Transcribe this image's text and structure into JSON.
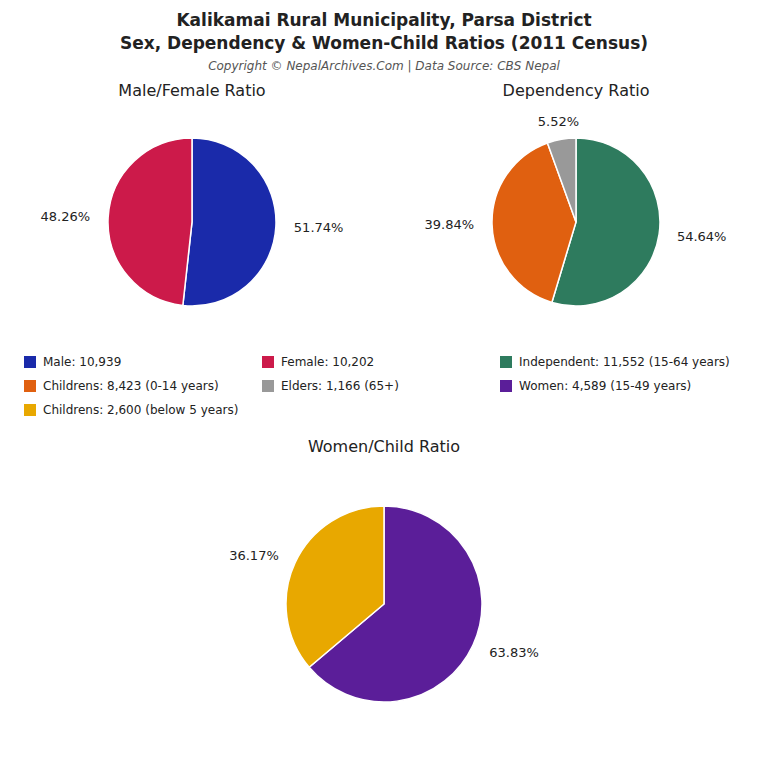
{
  "title": "Kalikamai Rural Municipality, Parsa District",
  "subtitle": "Sex, Dependency & Women-Child Ratios (2011 Census)",
  "annotations": [
    "Copyright © NepalArchives.Com | Data Source: CBS Nepal"
  ],
  "chart_data": [
    {
      "type": "pie",
      "title": "Male/Female Ratio",
      "categories": [
        "Male: 10,939",
        "Female: 10,202"
      ],
      "values": [
        51.74,
        48.26
      ],
      "value_labels": [
        "51.74%",
        "48.26%"
      ],
      "colors": [
        "#1a2aaa",
        "#cc1a4a"
      ],
      "data_labels": true,
      "legend": "bottom"
    },
    {
      "type": "pie",
      "title": "Dependency Ratio",
      "categories": [
        "Independent: 11,552 (15-64 years)",
        "Childrens: 8,423 (0-14 years)",
        "Elders: 1,166 (65+)"
      ],
      "values": [
        54.64,
        39.84,
        5.52
      ],
      "value_labels": [
        "54.64%",
        "39.84%",
        "5.52%"
      ],
      "colors": [
        "#2e7b5e",
        "#e06010",
        "#999999"
      ],
      "data_labels": true,
      "legend": "bottom"
    },
    {
      "type": "pie",
      "title": "Women/Child Ratio",
      "categories": [
        "Women: 4,589 (15-49 years)",
        "Childrens: 2,600 (below 5 years)"
      ],
      "values": [
        63.83,
        36.17
      ],
      "value_labels": [
        "63.83%",
        "36.17%"
      ],
      "colors": [
        "#5b1e99",
        "#e8a800"
      ],
      "data_labels": true,
      "legend": "top"
    }
  ]
}
